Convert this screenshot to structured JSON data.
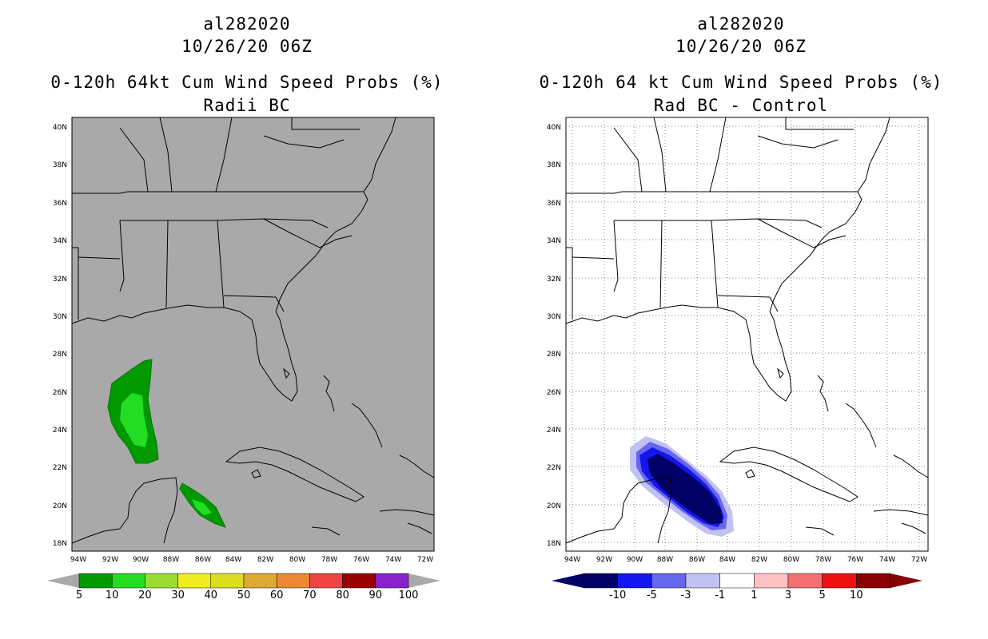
{
  "left": {
    "title_storm": "al282020",
    "title_time": "10/26/20 06Z",
    "title_main": "0-120h 64kt Cum Wind Speed Probs (%)",
    "title_sub": "Radii BC",
    "background": "#a9a9a9",
    "lat_labels": [
      "40N",
      "38N",
      "36N",
      "34N",
      "32N",
      "30N",
      "28N",
      "26N",
      "24N",
      "22N",
      "20N",
      "18N"
    ],
    "lon_labels": [
      "94W",
      "92W",
      "90W",
      "88W",
      "86W",
      "84W",
      "82W",
      "80W",
      "78W",
      "76W",
      "74W",
      "72W"
    ],
    "colorbar": {
      "colors": [
        "#009900",
        "#22dd22",
        "#99dd33",
        "#eeee22",
        "#dddd22",
        "#ddaa33",
        "#ee8833",
        "#ee4444",
        "#990000",
        "#8822cc"
      ],
      "labels": [
        "5",
        "10",
        "20",
        "30",
        "40",
        "50",
        "60",
        "70",
        "80",
        "90",
        "100"
      ]
    }
  },
  "right": {
    "title_storm": "al282020",
    "title_time": "10/26/20 06Z",
    "title_main": "0-120h 64 kt Cum Wind Speed Probs (%)",
    "title_sub": "Rad BC - Control",
    "background": "#ffffff",
    "lat_labels": [
      "40N",
      "38N",
      "36N",
      "34N",
      "32N",
      "30N",
      "28N",
      "26N",
      "24N",
      "22N",
      "20N",
      "18N"
    ],
    "lon_labels": [
      "94W",
      "92W",
      "90W",
      "88W",
      "86W",
      "84W",
      "82W",
      "80W",
      "78W",
      "76W",
      "74W",
      "72W"
    ],
    "colorbar": {
      "colors": [
        "#000066",
        "#1515ee",
        "#6666ee",
        "#c2c2f2",
        "#ffffff",
        "#ffc2c2",
        "#f57070",
        "#ee1111",
        "#880000"
      ],
      "labels": [
        "-10",
        "-5",
        "-3",
        "-1",
        "1",
        "3",
        "5",
        "10"
      ]
    }
  }
}
